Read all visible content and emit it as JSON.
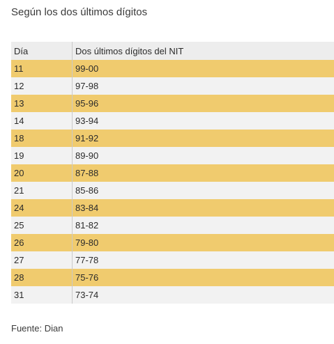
{
  "title": "Según los dos últimos dígitos",
  "table": {
    "headers": [
      "Día",
      "Dos últimos dígitos del NIT"
    ],
    "rows": [
      {
        "dia": "11",
        "digitos": "99-00"
      },
      {
        "dia": "12",
        "digitos": "97-98"
      },
      {
        "dia": "13",
        "digitos": "95-96"
      },
      {
        "dia": "14",
        "digitos": "93-94"
      },
      {
        "dia": "18",
        "digitos": "91-92"
      },
      {
        "dia": "19",
        "digitos": "89-90"
      },
      {
        "dia": "20",
        "digitos": "87-88"
      },
      {
        "dia": "21",
        "digitos": "85-86"
      },
      {
        "dia": "24",
        "digitos": "83-84"
      },
      {
        "dia": "25",
        "digitos": "81-82"
      },
      {
        "dia": "26",
        "digitos": "79-80"
      },
      {
        "dia": "27",
        "digitos": "77-78"
      },
      {
        "dia": "28",
        "digitos": "75-76"
      },
      {
        "dia": "31",
        "digitos": "73-74"
      }
    ]
  },
  "footer": "Fuente: Dian",
  "colors": {
    "highlight_row": "#f0cb6e",
    "plain_row": "#f2f2f2",
    "header_row": "#ededed"
  }
}
